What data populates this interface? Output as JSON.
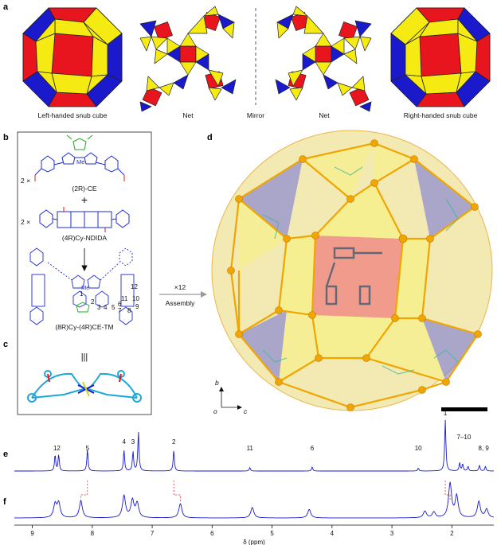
{
  "panels": {
    "a": "a",
    "b": "b",
    "c": "c",
    "d": "d",
    "e": "e",
    "f": "f"
  },
  "panel_a": {
    "left_caption": "Left-handed snub cube",
    "net_left_caption": "Net",
    "mirror_caption": "Mirror",
    "net_right_caption": "Net",
    "right_caption": "Right-handed snub cube",
    "colors": {
      "square": "#e8141e",
      "triangle_a": "#f5ea12",
      "triangle_b": "#1a1acc",
      "edge": "#222222"
    }
  },
  "panel_b": {
    "mult1": "2 ×",
    "reagent1": "(2R)-CE",
    "plus": "+",
    "mult2": "2 ×",
    "reagent2": "(4R)Cy-NDIDA",
    "product": "(8R)Cy-(4R)CE-TM",
    "site_numbers": [
      "1",
      "2",
      "3",
      "4",
      "5",
      "6",
      "7",
      "8",
      "9",
      "10",
      "11",
      "12"
    ],
    "me1": "Me",
    "me2": "Me"
  },
  "panel_c": {
    "symbol": "|||"
  },
  "assembly": {
    "mult": "×12",
    "label": "Assembly"
  },
  "panel_d": {
    "axis_b": "b",
    "axis_o": "o",
    "axis_c": "c",
    "colors": {
      "gold": "#f0a500",
      "blue": "#7a7ad8",
      "yellow": "#f5f08a",
      "red": "#f08080"
    }
  },
  "chart_data": {
    "type": "line",
    "xlabel": "δ (ppm)",
    "xlim": [
      9.3,
      1.3
    ],
    "x_ticks": [
      "9",
      "8",
      "7",
      "6",
      "5",
      "4",
      "3",
      "2"
    ],
    "series": [
      {
        "panel": "e",
        "peaks": [
          {
            "x": 8.62,
            "h": 0.28
          },
          {
            "x": 8.56,
            "h": 0.28
          },
          {
            "x": 8.08,
            "h": 0.38
          },
          {
            "x": 7.47,
            "h": 0.36
          },
          {
            "x": 7.32,
            "h": 0.34
          },
          {
            "x": 7.23,
            "h": 0.68
          },
          {
            "x": 6.64,
            "h": 0.36
          },
          {
            "x": 5.37,
            "h": 0.06
          },
          {
            "x": 4.33,
            "h": 0.07
          },
          {
            "x": 2.56,
            "h": 0.05
          },
          {
            "x": 2.11,
            "h": 0.9
          },
          {
            "x": 1.87,
            "h": 0.14
          },
          {
            "x": 1.82,
            "h": 0.12
          },
          {
            "x": 1.73,
            "h": 0.08
          },
          {
            "x": 1.54,
            "h": 0.1
          },
          {
            "x": 1.44,
            "h": 0.08
          }
        ],
        "annotations": [
          {
            "x": 8.59,
            "label": "12"
          },
          {
            "x": 8.08,
            "label": "5"
          },
          {
            "x": 7.47,
            "label": "4"
          },
          {
            "x": 7.32,
            "label": "3"
          },
          {
            "x": 6.64,
            "label": "2"
          },
          {
            "x": 5.37,
            "label": "11"
          },
          {
            "x": 4.33,
            "label": "6"
          },
          {
            "x": 2.56,
            "label": "10"
          },
          {
            "x": 2.11,
            "label": "1"
          },
          {
            "x": 1.8,
            "label": "7–10"
          },
          {
            "x": 1.47,
            "label": "8, 9"
          }
        ]
      },
      {
        "panel": "f",
        "peaks": [
          {
            "x": 8.62,
            "h": 0.28
          },
          {
            "x": 8.56,
            "h": 0.3
          },
          {
            "x": 8.19,
            "h": 0.36
          },
          {
            "x": 7.47,
            "h": 0.46
          },
          {
            "x": 7.33,
            "h": 0.36
          },
          {
            "x": 7.25,
            "h": 0.3
          },
          {
            "x": 6.53,
            "h": 0.3
          },
          {
            "x": 5.33,
            "h": 0.22
          },
          {
            "x": 4.38,
            "h": 0.18
          },
          {
            "x": 2.45,
            "h": 0.14
          },
          {
            "x": 2.3,
            "h": 0.12
          },
          {
            "x": 2.03,
            "h": 0.72
          },
          {
            "x": 1.92,
            "h": 0.45
          },
          {
            "x": 1.55,
            "h": 0.34
          },
          {
            "x": 1.42,
            "h": 0.18
          }
        ]
      }
    ]
  }
}
